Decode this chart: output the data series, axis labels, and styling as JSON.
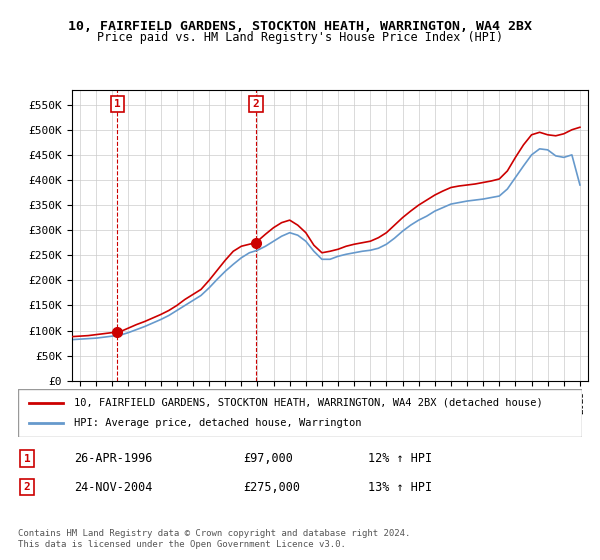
{
  "title1": "10, FAIRFIELD GARDENS, STOCKTON HEATH, WARRINGTON, WA4 2BX",
  "title2": "Price paid vs. HM Land Registry's House Price Index (HPI)",
  "legend_line1": "10, FAIRFIELD GARDENS, STOCKTON HEATH, WARRINGTON, WA4 2BX (detached house)",
  "legend_line2": "HPI: Average price, detached house, Warrington",
  "footnote": "Contains HM Land Registry data © Crown copyright and database right 2024.\nThis data is licensed under the Open Government Licence v3.0.",
  "sale1_label": "1",
  "sale1_date": "26-APR-1996",
  "sale1_price": "£97,000",
  "sale1_hpi": "12% ↑ HPI",
  "sale2_label": "2",
  "sale2_date": "24-NOV-2004",
  "sale2_price": "£275,000",
  "sale2_hpi": "13% ↑ HPI",
  "sale1_x": 1996.32,
  "sale1_y": 97000,
  "sale2_x": 2004.9,
  "sale2_y": 275000,
  "red_color": "#cc0000",
  "blue_color": "#6699cc",
  "background_color": "#ffffff",
  "grid_color": "#cccccc",
  "ylim": [
    0,
    580000
  ],
  "xlim": [
    1993.5,
    2025.5
  ],
  "red_x": [
    1993.5,
    1994.0,
    1994.5,
    1995.0,
    1995.5,
    1996.0,
    1996.32,
    1996.5,
    1997.0,
    1997.5,
    1998.0,
    1998.5,
    1999.0,
    1999.5,
    2000.0,
    2000.5,
    2001.0,
    2001.5,
    2002.0,
    2002.5,
    2003.0,
    2003.5,
    2004.0,
    2004.5,
    2004.9,
    2005.0,
    2005.5,
    2006.0,
    2006.5,
    2007.0,
    2007.5,
    2008.0,
    2008.5,
    2009.0,
    2009.5,
    2010.0,
    2010.5,
    2011.0,
    2011.5,
    2012.0,
    2012.5,
    2013.0,
    2013.5,
    2014.0,
    2014.5,
    2015.0,
    2015.5,
    2016.0,
    2016.5,
    2017.0,
    2017.5,
    2018.0,
    2018.5,
    2019.0,
    2019.5,
    2020.0,
    2020.5,
    2021.0,
    2021.5,
    2022.0,
    2022.5,
    2023.0,
    2023.5,
    2024.0,
    2024.5,
    2025.0
  ],
  "red_y": [
    88000,
    89000,
    90000,
    92000,
    94000,
    96000,
    97000,
    98000,
    105000,
    112000,
    118000,
    125000,
    132000,
    140000,
    150000,
    162000,
    172000,
    182000,
    200000,
    220000,
    240000,
    258000,
    268000,
    272000,
    275000,
    278000,
    292000,
    305000,
    315000,
    320000,
    310000,
    295000,
    270000,
    255000,
    258000,
    262000,
    268000,
    272000,
    275000,
    278000,
    285000,
    295000,
    310000,
    325000,
    338000,
    350000,
    360000,
    370000,
    378000,
    385000,
    388000,
    390000,
    392000,
    395000,
    398000,
    402000,
    418000,
    445000,
    470000,
    490000,
    495000,
    490000,
    488000,
    492000,
    500000,
    505000
  ],
  "blue_x": [
    1993.5,
    1994.0,
    1994.5,
    1995.0,
    1995.5,
    1996.0,
    1996.5,
    1997.0,
    1997.5,
    1998.0,
    1998.5,
    1999.0,
    1999.5,
    2000.0,
    2000.5,
    2001.0,
    2001.5,
    2002.0,
    2002.5,
    2003.0,
    2003.5,
    2004.0,
    2004.5,
    2005.0,
    2005.5,
    2006.0,
    2006.5,
    2007.0,
    2007.5,
    2008.0,
    2008.5,
    2009.0,
    2009.5,
    2010.0,
    2010.5,
    2011.0,
    2011.5,
    2012.0,
    2012.5,
    2013.0,
    2013.5,
    2014.0,
    2014.5,
    2015.0,
    2015.5,
    2016.0,
    2016.5,
    2017.0,
    2017.5,
    2018.0,
    2018.5,
    2019.0,
    2019.5,
    2020.0,
    2020.5,
    2021.0,
    2021.5,
    2022.0,
    2022.5,
    2023.0,
    2023.5,
    2024.0,
    2024.5,
    2025.0
  ],
  "blue_y": [
    82000,
    83000,
    84000,
    85000,
    87000,
    89000,
    91000,
    96000,
    102000,
    108000,
    115000,
    122000,
    130000,
    140000,
    150000,
    160000,
    170000,
    185000,
    202000,
    218000,
    232000,
    245000,
    255000,
    260000,
    268000,
    278000,
    288000,
    295000,
    290000,
    278000,
    258000,
    242000,
    242000,
    248000,
    252000,
    255000,
    258000,
    260000,
    264000,
    272000,
    284000,
    298000,
    310000,
    320000,
    328000,
    338000,
    345000,
    352000,
    355000,
    358000,
    360000,
    362000,
    365000,
    368000,
    382000,
    405000,
    428000,
    450000,
    462000,
    460000,
    448000,
    445000,
    450000,
    390000
  ]
}
